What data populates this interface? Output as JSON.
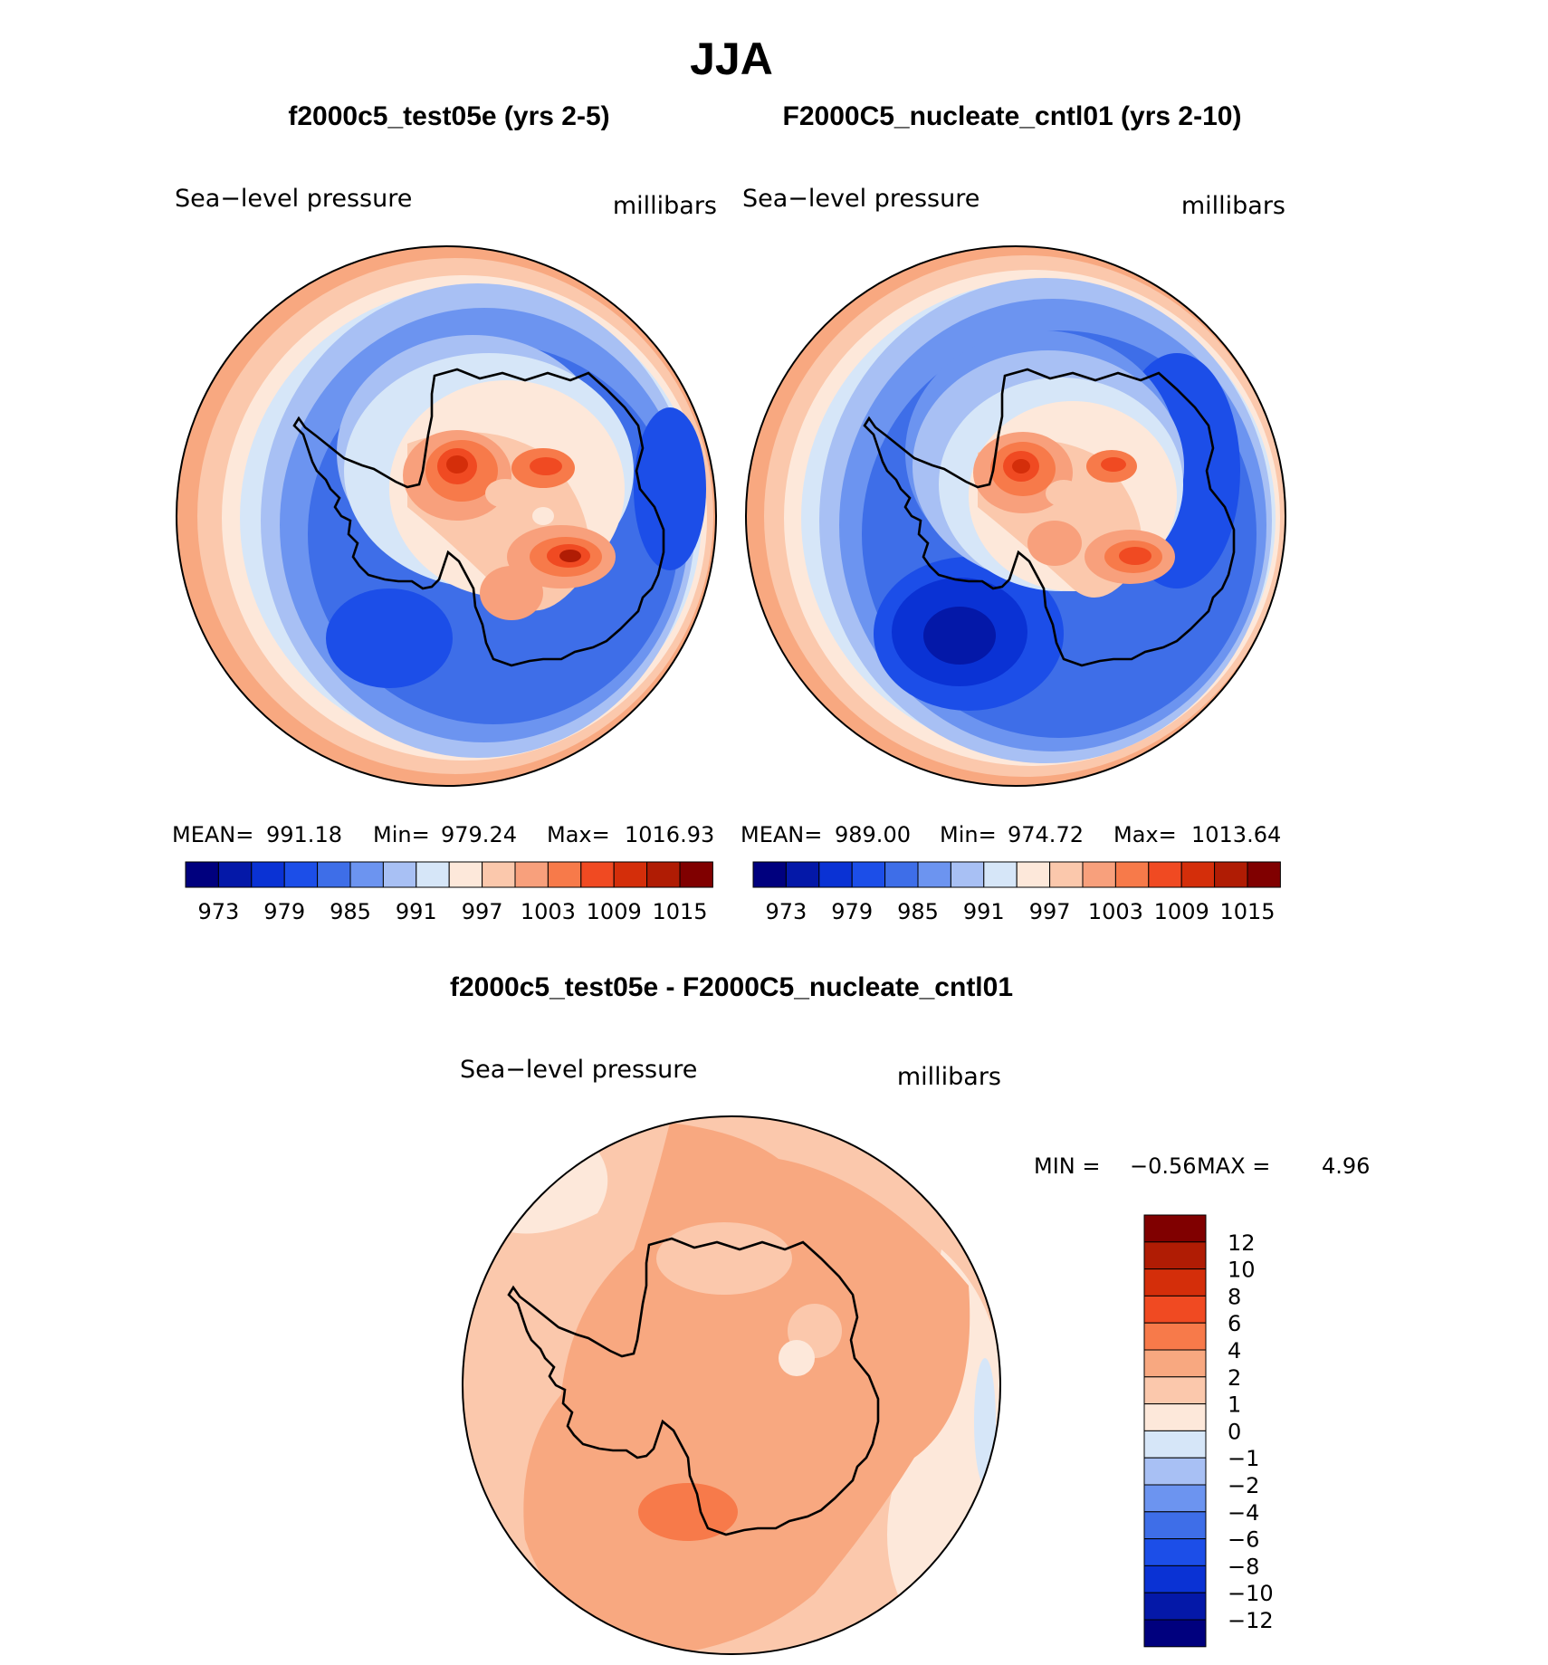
{
  "figure_title": "JJA",
  "panels": [
    {
      "title": "f2000c5_test05e (yrs 2-5)",
      "variable": "Sea−level pressure",
      "units": "millibars",
      "stats": {
        "mean_label": "MEAN=",
        "mean": "991.18",
        "min_label": "Min=",
        "min": "979.24",
        "max_label": "Max=",
        "max": "1016.93"
      },
      "colorbar_ticks": [
        "973",
        "979",
        "985",
        "991",
        "997",
        "1003",
        "1009",
        "1015"
      ]
    },
    {
      "title": "F2000C5_nucleate_cntl01 (yrs 2-10)",
      "variable": "Sea−level pressure",
      "units": "millibars",
      "stats": {
        "mean_label": "MEAN=",
        "mean": "989.00",
        "min_label": "Min=",
        "min": "974.72",
        "max_label": "Max=",
        "max": "1013.64"
      },
      "colorbar_ticks": [
        "973",
        "979",
        "985",
        "991",
        "997",
        "1003",
        "1009",
        "1015"
      ]
    },
    {
      "title": "f2000c5_test05e - F2000C5_nucleate_cntl01",
      "variable": "Sea−level pressure",
      "units": "millibars",
      "stats": {
        "min_label": "MIN =",
        "min": "−0.56",
        "max_label": "MAX =",
        "max": "4.96"
      },
      "colorbar_ticks": [
        "12",
        "10",
        "8",
        "6",
        "4",
        "2",
        "1",
        "0",
        "−1",
        "−2",
        "−4",
        "−6",
        "−8",
        "−10",
        "−12"
      ]
    }
  ],
  "colors": {
    "seq_scale": [
      "#00007e",
      "#0418a8",
      "#0a32d4",
      "#1c4ee8",
      "#3e6ee8",
      "#6c94f0",
      "#a8c0f4",
      "#d6e6f8",
      "#fde8da",
      "#fbc8ac",
      "#f8a07c",
      "#f77a4a",
      "#f04a22",
      "#d42e0a",
      "#b01c04",
      "#800000"
    ],
    "diff_scale": [
      "#800000",
      "#b01c04",
      "#d42e0a",
      "#f04a22",
      "#f77a4a",
      "#f8a880",
      "#fbc8ac",
      "#fde8da",
      "#d6e6f8",
      "#a8c0f4",
      "#6c94f0",
      "#3e6ee8",
      "#1c4ee8",
      "#0a32d4",
      "#0418a8",
      "#00007e"
    ]
  },
  "chart_data": [
    {
      "type": "heatmap",
      "title": "f2000c5_test05e (yrs 2-5)",
      "projection": "south polar stereographic",
      "variable": "Sea-level pressure",
      "units": "millibars",
      "mean": 991.18,
      "min": 979.24,
      "max": 1016.93,
      "contour_levels": [
        973,
        976,
        979,
        982,
        985,
        988,
        991,
        994,
        997,
        1000,
        1003,
        1006,
        1009,
        1012,
        1015
      ]
    },
    {
      "type": "heatmap",
      "title": "F2000C5_nucleate_cntl01 (yrs 2-10)",
      "projection": "south polar stereographic",
      "variable": "Sea-level pressure",
      "units": "millibars",
      "mean": 989.0,
      "min": 974.72,
      "max": 1013.64,
      "contour_levels": [
        973,
        976,
        979,
        982,
        985,
        988,
        991,
        994,
        997,
        1000,
        1003,
        1006,
        1009,
        1012,
        1015
      ]
    },
    {
      "type": "heatmap",
      "title": "f2000c5_test05e - F2000C5_nucleate_cntl01",
      "projection": "south polar stereographic",
      "variable": "Sea-level pressure",
      "units": "millibars",
      "min": -0.56,
      "max": 4.96,
      "contour_levels": [
        -12,
        -10,
        -8,
        -6,
        -4,
        -2,
        -1,
        0,
        1,
        2,
        4,
        6,
        8,
        10,
        12
      ]
    }
  ]
}
